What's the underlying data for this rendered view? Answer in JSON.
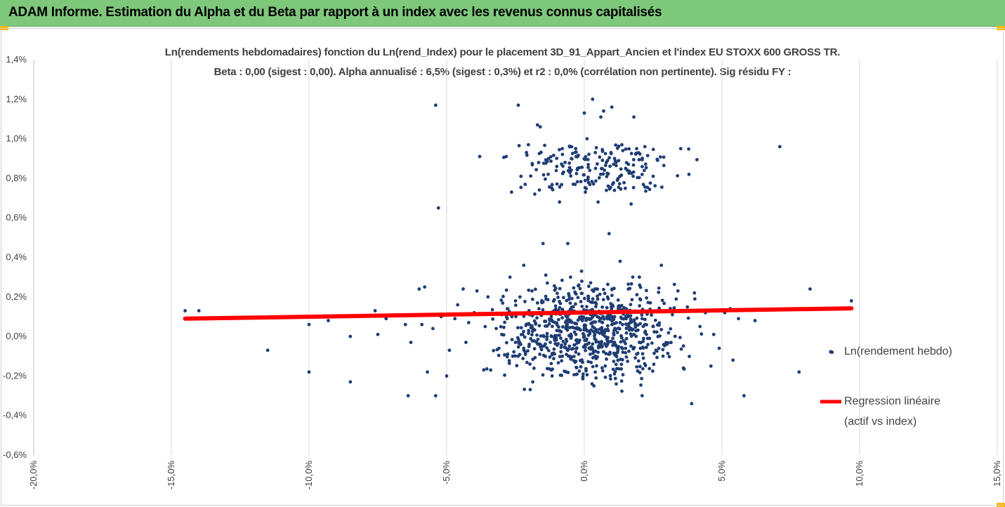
{
  "header": {
    "title": "ADAM Informe. Estimation du Alpha et du Beta par rapport à un index avec les revenus connus capitalisés",
    "background_color": "#7ec87c",
    "corner_color": "#f5b800"
  },
  "chart_data": {
    "type": "scatter",
    "title_line1": "Ln(rendements hebdomadaires) fonction du Ln(rend_Index) pour le placement 3D_91_Appart_Ancien et l'index EU STOXX 600 GROSS TR.",
    "title_line2": "Beta : 0,00 (sigest : 0,00).  Alpha annualisé : 6,5% (sigest : 0,3%) et r2 : 0,0% (corrélation non pertinente). Sig résidu FY :",
    "xlim": [
      -0.2,
      0.15
    ],
    "ylim": [
      -0.006,
      0.014
    ],
    "x_ticks": [
      "-20,0%",
      "-15,0%",
      "-10,0%",
      "-5,0%",
      "0,0%",
      "5,0%",
      "10,0%",
      "15,0%"
    ],
    "y_ticks": [
      "-0,6%",
      "-0,4%",
      "-0,2%",
      "0,0%",
      "0,2%",
      "0,4%",
      "0,6%",
      "0,8%",
      "1,0%",
      "1,2%",
      "1,4%"
    ],
    "grid": "vertical",
    "legend_position": "right",
    "series": [
      {
        "name": "Ln(rendement hebdo)",
        "kind": "points",
        "color": "#1f3d73",
        "points": [
          [
            -0.145,
            0.0013
          ],
          [
            -0.14,
            0.0013
          ],
          [
            -0.115,
            -0.0007
          ],
          [
            -0.1,
            0.0006
          ],
          [
            -0.1,
            -0.0018
          ],
          [
            -0.093,
            0.0008
          ],
          [
            -0.085,
            0.0
          ],
          [
            -0.085,
            -0.0023
          ],
          [
            -0.076,
            0.0013
          ],
          [
            -0.075,
            0.0001
          ],
          [
            -0.072,
            0.0009
          ],
          [
            -0.065,
            0.0006
          ],
          [
            -0.063,
            -0.0003
          ],
          [
            -0.064,
            -0.003
          ],
          [
            -0.06,
            0.0024
          ],
          [
            -0.058,
            0.0025
          ],
          [
            -0.059,
            0.0006
          ],
          [
            -0.057,
            -0.0018
          ],
          [
            -0.055,
            0.0004
          ],
          [
            -0.054,
            0.0117
          ],
          [
            -0.053,
            0.0065
          ],
          [
            -0.054,
            -0.003
          ],
          [
            -0.052,
            0.001
          ],
          [
            -0.05,
            -0.002
          ],
          [
            -0.049,
            -0.0007
          ],
          [
            -0.047,
            0.0009
          ],
          [
            -0.046,
            0.0016
          ],
          [
            -0.044,
            0.0024
          ],
          [
            -0.043,
            -0.0003
          ],
          [
            -0.042,
            0.0007
          ],
          [
            -0.04,
            0.0012
          ],
          [
            -0.039,
            0.0023
          ],
          [
            -0.038,
            0.0091
          ],
          [
            -0.036,
            0.0005
          ],
          [
            -0.035,
            0.002
          ],
          [
            -0.034,
            -0.0017
          ],
          [
            -0.032,
            0.0004
          ],
          [
            -0.031,
            -0.0006
          ],
          [
            -0.03,
            0.0011
          ],
          [
            -0.028,
            0.0014
          ],
          [
            -0.027,
            0.003
          ],
          [
            -0.026,
            -0.001
          ],
          [
            -0.025,
            0.0018
          ],
          [
            -0.024,
            0.0117
          ],
          [
            -0.023,
            0.0081
          ],
          [
            -0.022,
            0.0036
          ],
          [
            -0.021,
            0.0093
          ],
          [
            -0.02,
            -0.0004
          ],
          [
            -0.019,
            0.0023
          ],
          [
            -0.018,
            0.0072
          ],
          [
            -0.017,
            0.0107
          ],
          [
            -0.016,
            0.0106
          ],
          [
            -0.015,
            0.0047
          ],
          [
            -0.014,
            0.0031
          ],
          [
            -0.013,
            0.009
          ],
          [
            -0.012,
            -0.0017
          ],
          [
            -0.011,
            0.0013
          ],
          [
            -0.01,
            0.0086
          ],
          [
            -0.009,
            0.0068
          ],
          [
            -0.008,
            0.0095
          ],
          [
            -0.007,
            0.0088
          ],
          [
            -0.006,
            0.0047
          ],
          [
            -0.005,
            0.003
          ],
          [
            -0.004,
            0.0077
          ],
          [
            -0.003,
            0.0091
          ],
          [
            -0.002,
            0.0026
          ],
          [
            -0.001,
            0.0033
          ],
          [
            0.0,
            0.0113
          ],
          [
            0.001,
            0.01
          ],
          [
            0.002,
            0.0084
          ],
          [
            0.003,
            0.012
          ],
          [
            0.004,
            0.0093
          ],
          [
            0.005,
            0.0068
          ],
          [
            0.006,
            0.0111
          ],
          [
            0.007,
            0.0114
          ],
          [
            0.008,
            0.0088
          ],
          [
            0.009,
            0.0052
          ],
          [
            0.01,
            0.0116
          ],
          [
            0.011,
            0.009
          ],
          [
            0.012,
            0.0079
          ],
          [
            0.013,
            0.0038
          ],
          [
            0.014,
            0.0094
          ],
          [
            0.015,
            0.0085
          ],
          [
            0.016,
            0.0024
          ],
          [
            0.017,
            0.0067
          ],
          [
            0.018,
            0.0111
          ],
          [
            0.019,
            0.0095
          ],
          [
            0.02,
            0.003
          ],
          [
            0.021,
            -0.003
          ],
          [
            0.022,
            0.0096
          ],
          [
            0.024,
            0.0017
          ],
          [
            0.025,
            0.0081
          ],
          [
            0.026,
            -0.0007
          ],
          [
            0.028,
            0.0036
          ],
          [
            0.03,
            -0.0004
          ],
          [
            0.032,
            0.0011
          ],
          [
            0.034,
            0.0023
          ],
          [
            0.035,
            0.0095
          ],
          [
            0.036,
            -0.0016
          ],
          [
            0.038,
            0.0082
          ],
          [
            0.039,
            -0.0034
          ],
          [
            0.04,
            0.0022
          ],
          [
            0.042,
            0.0005
          ],
          [
            0.044,
            0.0012
          ],
          [
            0.046,
            -0.0015
          ],
          [
            0.047,
            0.0001
          ],
          [
            0.049,
            -0.0006
          ],
          [
            0.051,
            0.0012
          ],
          [
            0.053,
            0.0014
          ],
          [
            0.054,
            -0.0012
          ],
          [
            0.056,
            0.0009
          ],
          [
            0.058,
            -0.003
          ],
          [
            0.062,
            0.0008
          ],
          [
            0.071,
            0.0096
          ],
          [
            0.078,
            -0.0018
          ],
          [
            0.082,
            0.0024
          ],
          [
            0.09,
            -0.0008
          ],
          [
            0.097,
            0.0018
          ],
          [
            -0.03,
            0.0001
          ],
          [
            -0.025,
            -0.0003
          ],
          [
            -0.02,
            0.0006
          ],
          [
            -0.015,
            -0.0005
          ],
          [
            -0.01,
            0.0003
          ],
          [
            -0.008,
            -0.001
          ],
          [
            -0.005,
            0.0008
          ],
          [
            -0.003,
            -0.0002
          ],
          [
            -0.001,
            0.001
          ],
          [
            0.001,
            -0.0004
          ],
          [
            0.003,
            0.0005
          ],
          [
            0.005,
            -0.0008
          ],
          [
            0.007,
            0.0002
          ],
          [
            0.009,
            0.0011
          ],
          [
            0.011,
            -0.0003
          ],
          [
            0.013,
            0.0007
          ],
          [
            0.015,
            -0.0006
          ],
          [
            0.017,
            0.0004
          ],
          [
            0.019,
            -0.0009
          ],
          [
            0.021,
            0.0009
          ],
          [
            0.023,
            -0.0001
          ],
          [
            0.025,
            0.0005
          ],
          [
            -0.028,
            0.0009
          ],
          [
            -0.022,
            -0.0006
          ],
          [
            -0.018,
            0.0012
          ],
          [
            -0.012,
            0.0
          ],
          [
            -0.006,
            -0.0007
          ],
          [
            -0.002,
            0.0004
          ],
          [
            0.002,
            0.0013
          ],
          [
            0.004,
            -0.001
          ],
          [
            0.006,
            0.0009
          ],
          [
            0.008,
            -0.0005
          ],
          [
            0.01,
            0.0006
          ],
          [
            0.012,
            0.0002
          ],
          [
            0.014,
            -0.0008
          ],
          [
            0.016,
            0.001
          ],
          [
            0.018,
            0.0001
          ],
          [
            0.02,
            -0.0003
          ],
          [
            0.022,
            0.0006
          ],
          [
            -0.004,
            0.0015
          ],
          [
            0.0,
            0.0
          ],
          [
            0.0,
            0.0005
          ],
          [
            0.0,
            -0.0005
          ],
          [
            0.002,
            0.0002
          ],
          [
            -0.002,
            -0.0003
          ]
        ]
      },
      {
        "name": "Regression linéaire",
        "name_line2": "(actif vs index)",
        "kind": "line",
        "color": "#ff0000",
        "points": [
          [
            -0.145,
            0.0009
          ],
          [
            0.097,
            0.00142
          ]
        ]
      }
    ]
  }
}
